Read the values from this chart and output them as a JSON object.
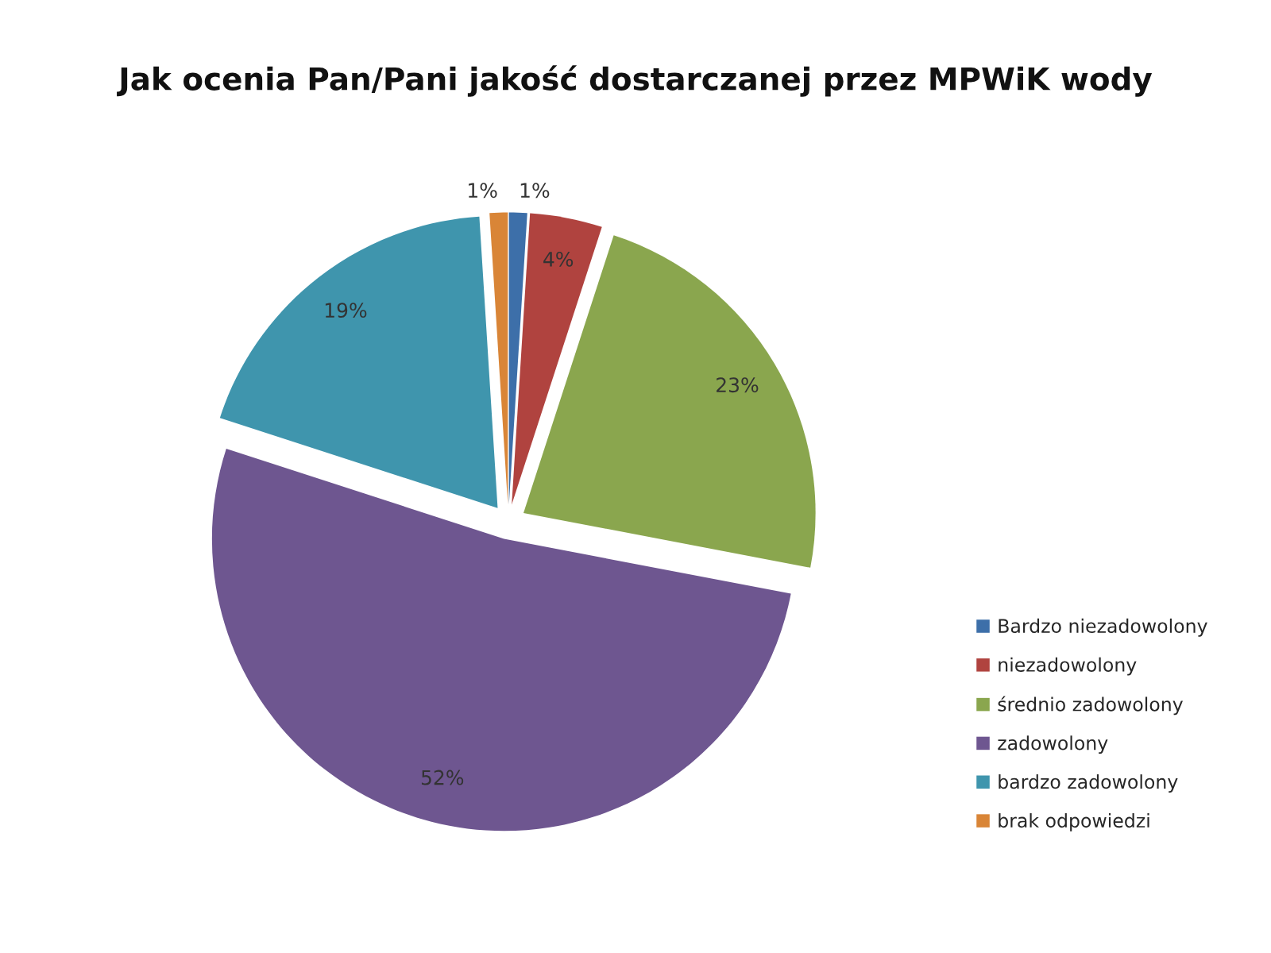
{
  "chart_data": {
    "type": "pie",
    "title": "Jak ocenia Pan/Pani jakość dostarczanej przez MPWiK wody",
    "categories": [
      "Bardzo niezadowolony",
      "niezadowolony",
      "średnio zadowolony",
      "zadowolony",
      "bardzo zadowolony",
      "brak odpowiedzi"
    ],
    "values": [
      1,
      4,
      23,
      52,
      19,
      1
    ],
    "colors": [
      "#3d6fa9",
      "#b0433f",
      "#8aa64e",
      "#6e5690",
      "#3f95ad",
      "#d98537"
    ],
    "value_labels": [
      "1%",
      "4%",
      "23%",
      "52%",
      "19%",
      "1%"
    ],
    "legend": "bottom right"
  }
}
